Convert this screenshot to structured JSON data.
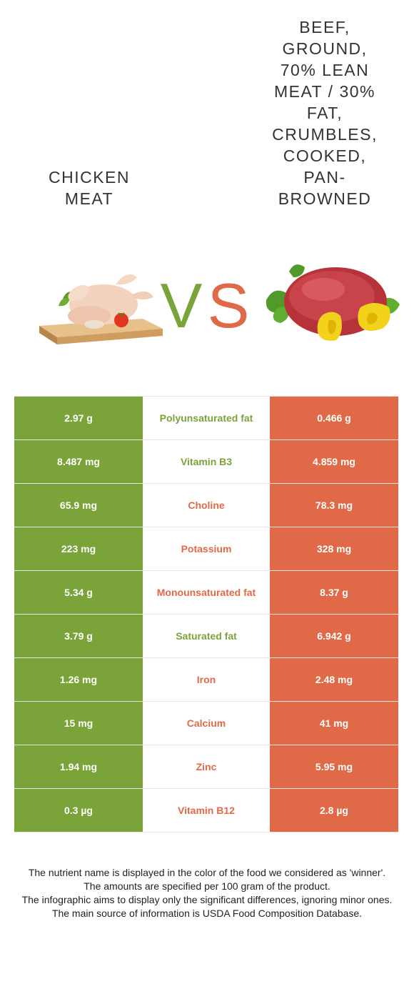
{
  "header": {
    "left_title_lines": [
      "Chicken",
      "meat"
    ],
    "right_title_lines": [
      "Beef,",
      "ground,",
      "70% lean",
      "meat / 30%",
      "fat,",
      "crumbles,",
      "cooked,",
      "pan-",
      "browned"
    ]
  },
  "images": {
    "left_icon": "chicken-on-board-image",
    "right_icon": "ground-beef-with-peppers-image"
  },
  "vs": {
    "v": "V",
    "s": "S",
    "v_color": "#7aa33a",
    "s_color": "#e06a48"
  },
  "colors": {
    "green": "#7aa33a",
    "orange": "#e06a48"
  },
  "rows": [
    {
      "left": "2.97 g",
      "nutrient": "Polyunsaturated fat",
      "right": "0.466 g",
      "winner": "left"
    },
    {
      "left": "8.487 mg",
      "nutrient": "Vitamin B3",
      "right": "4.859 mg",
      "winner": "left"
    },
    {
      "left": "65.9 mg",
      "nutrient": "Choline",
      "right": "78.3 mg",
      "winner": "right"
    },
    {
      "left": "223 mg",
      "nutrient": "Potassium",
      "right": "328 mg",
      "winner": "right"
    },
    {
      "left": "5.34 g",
      "nutrient": "Monounsaturated fat",
      "right": "8.37 g",
      "winner": "right"
    },
    {
      "left": "3.79 g",
      "nutrient": "Saturated fat",
      "right": "6.942 g",
      "winner": "left"
    },
    {
      "left": "1.26 mg",
      "nutrient": "Iron",
      "right": "2.48 mg",
      "winner": "right"
    },
    {
      "left": "15 mg",
      "nutrient": "Calcium",
      "right": "41 mg",
      "winner": "right"
    },
    {
      "left": "1.94 mg",
      "nutrient": "Zinc",
      "right": "5.95 mg",
      "winner": "right"
    },
    {
      "left": "0.3 µg",
      "nutrient": "Vitamin B12",
      "right": "2.8 µg",
      "winner": "right"
    }
  ],
  "notes": [
    "The nutrient name is displayed in the color of the food we considered as 'winner'.",
    "The amounts are specified per 100 gram of the product.",
    "The infographic aims to display only the significant differences, ignoring minor ones.",
    "The main source of information is USDA Food Composition Database."
  ]
}
